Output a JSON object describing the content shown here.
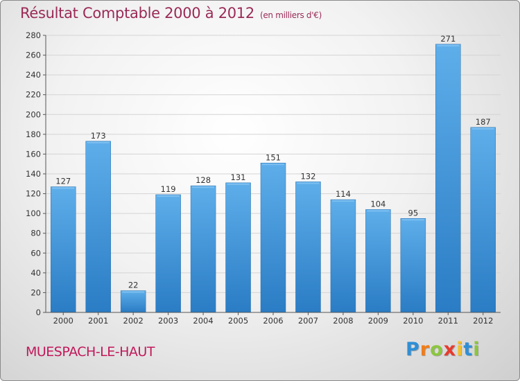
{
  "chart_data": {
    "type": "bar",
    "title": "Résultat Comptable 2000 à 2012",
    "subtitle": "(en milliers d'€)",
    "categories": [
      "2000",
      "2001",
      "2002",
      "2003",
      "2004",
      "2005",
      "2006",
      "2007",
      "2008",
      "2009",
      "2010",
      "2011",
      "2012"
    ],
    "values": [
      127,
      173,
      22,
      119,
      128,
      131,
      151,
      132,
      114,
      104,
      95,
      271,
      187
    ],
    "ylim": [
      0,
      280
    ],
    "yticks": [
      0,
      20,
      40,
      60,
      80,
      100,
      120,
      140,
      160,
      180,
      200,
      220,
      240,
      260,
      280
    ],
    "grid": true,
    "bar_color": "#4a9be0"
  },
  "footer": {
    "commune": "MUESPACH-LE-HAUT",
    "logo_letters": [
      {
        "ch": "P",
        "color": "#2e8fd6"
      },
      {
        "ch": "r",
        "color": "#f07d1a"
      },
      {
        "ch": "o",
        "color": "#8cc63f"
      },
      {
        "ch": "x",
        "color": "#e63b2e"
      },
      {
        "ch": "i",
        "color": "#f2c12e"
      },
      {
        "ch": "t",
        "color": "#2e8fd6"
      },
      {
        "ch": "i",
        "color": "#8cc63f"
      }
    ]
  }
}
